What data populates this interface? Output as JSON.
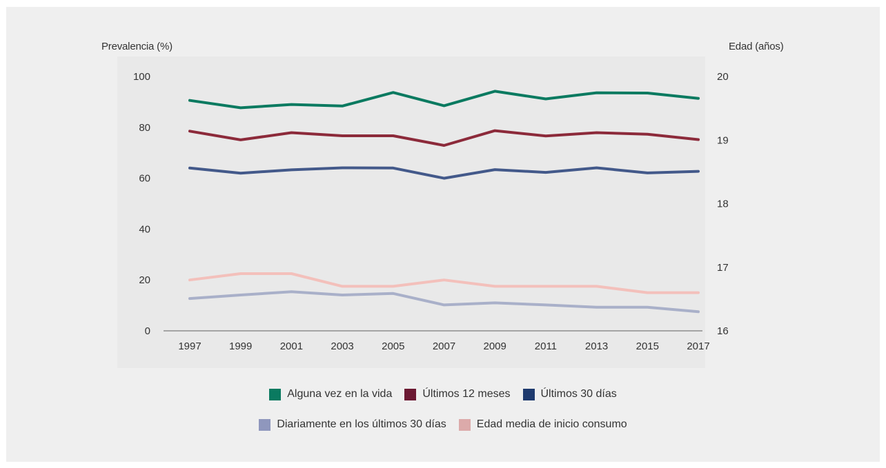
{
  "chart_data": {
    "type": "line",
    "x": [
      "1997",
      "1999",
      "2001",
      "2003",
      "2005",
      "2007",
      "2009",
      "2011",
      "2013",
      "2015",
      "2017"
    ],
    "ylabel": "Prevalencia (%)",
    "ylim": [
      0,
      100
    ],
    "yticks": [
      "0",
      "20",
      "40",
      "60",
      "80",
      "100"
    ],
    "y2label": "Edad (años)",
    "y2lim": [
      16,
      20
    ],
    "y2ticks": [
      "16",
      "17",
      "18",
      "19",
      "20"
    ],
    "grid": false,
    "legend_position": "bottom",
    "series": [
      {
        "name": "Alguna vez en la vida",
        "axis": "left",
        "color": "#0a7a60",
        "values": [
          90.6,
          87.7,
          89.0,
          88.4,
          93.7,
          88.5,
          94.2,
          91.2,
          93.6,
          93.5,
          91.4
        ]
      },
      {
        "name": "Últimos 12 meses",
        "axis": "left",
        "color": "#8c2a3a",
        "values": [
          78.5,
          75.1,
          77.9,
          76.7,
          76.7,
          72.9,
          78.7,
          76.6,
          77.9,
          77.3,
          75.2
        ]
      },
      {
        "name": "Últimos 30 días",
        "axis": "left",
        "color": "#43598a",
        "values": [
          64.0,
          62.0,
          63.3,
          64.1,
          64.0,
          60.0,
          63.4,
          62.3,
          64.1,
          62.1,
          62.7
        ]
      },
      {
        "name": "Diariamente en los últimos 30 días",
        "axis": "left",
        "color": "#a9b0c9",
        "values": [
          12.7,
          14.1,
          15.4,
          14.1,
          14.7,
          10.2,
          11.0,
          10.2,
          9.3,
          9.3,
          7.5
        ]
      },
      {
        "name": "Edad media de inicio consumo",
        "axis": "right",
        "color": "#f3c0bb",
        "values": [
          16.8,
          16.9,
          16.9,
          16.7,
          16.7,
          16.8,
          16.7,
          16.7,
          16.7,
          16.6,
          16.6
        ]
      }
    ]
  },
  "legend_swatches": {
    "Alguna vez en la vida": "#0a7a60",
    "Últimos 12 meses": "#6b1832",
    "Últimos 30 días": "#1e3a6e",
    "Diariamente en los últimos 30 días": "#8f97bd",
    "Edad media de inicio consumo": "#dcaaaa"
  }
}
